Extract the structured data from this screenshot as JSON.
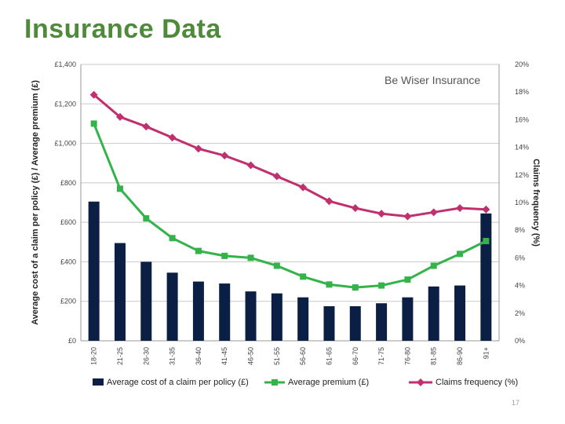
{
  "slide": {
    "title": "Insurance Data",
    "watermark": "Be Wiser Insurance",
    "page_number": "17"
  },
  "colors": {
    "bar": "#0b1f45",
    "premium": "#33b34a",
    "frequency": "#c0306e",
    "title": "#4e8a3a",
    "grid": "#c8c8c8"
  },
  "chart_data": {
    "type": "bar",
    "categories": [
      "18-20",
      "21-25",
      "26-30",
      "31-35",
      "36-40",
      "41-45",
      "46-50",
      "51-55",
      "56-60",
      "61-65",
      "66-70",
      "71-75",
      "76-80",
      "81-85",
      "86-90",
      "91+"
    ],
    "y_left": {
      "label": "Average cost of a claim per policy (£) / Average premium (£)",
      "ticks": [
        "£0",
        "£200",
        "£400",
        "£600",
        "£800",
        "£1,000",
        "£1,200",
        "£1,400"
      ],
      "ylim": [
        0,
        1400
      ]
    },
    "y_right": {
      "label": "Claims frequency (%)",
      "ticks": [
        "0%",
        "2%",
        "4%",
        "6%",
        "8%",
        "10%",
        "12%",
        "14%",
        "16%",
        "18%",
        "20%"
      ],
      "ylim": [
        0,
        20
      ]
    },
    "grid": true,
    "legend_position": "bottom",
    "series": [
      {
        "name": "Average cost of a claim per policy (£)",
        "type": "bar",
        "axis": "left",
        "values": [
          705,
          495,
          400,
          345,
          300,
          290,
          250,
          240,
          220,
          175,
          175,
          190,
          220,
          275,
          280,
          645
        ]
      },
      {
        "name": "Average premium (£)",
        "type": "line",
        "axis": "left",
        "marker": "square",
        "values": [
          1100,
          770,
          620,
          520,
          455,
          430,
          420,
          380,
          325,
          285,
          270,
          280,
          310,
          380,
          440,
          505
        ]
      },
      {
        "name": "Claims frequency (%)",
        "type": "line",
        "axis": "right",
        "marker": "diamond",
        "values": [
          17.8,
          16.2,
          15.5,
          14.7,
          13.9,
          13.4,
          12.7,
          11.9,
          11.1,
          10.1,
          9.6,
          9.2,
          9.0,
          9.3,
          9.6,
          9.5
        ]
      }
    ]
  }
}
